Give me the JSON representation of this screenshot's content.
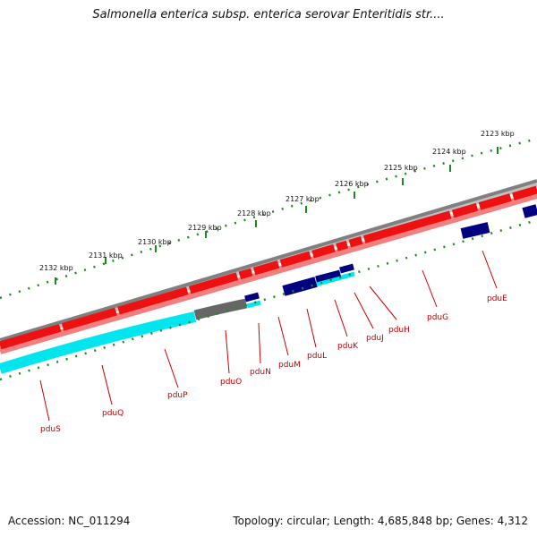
{
  "title": "Salmonella enterica subsp. enterica serovar Enteritidis str....",
  "footer": {
    "accession": "Accession: NC_011294",
    "summary": "Topology: circular; Length: 4,685,848 bp; Genes: 4,312"
  },
  "colors": {
    "ruler": "#1e8a1e",
    "backbone": "#808080",
    "gene_forward": "#ee1111",
    "gene_forward_shadow": "#f08080",
    "gene_reverse": "#000080",
    "feature_cyan": "#00e5ee",
    "feature_gray": "#666666",
    "label": "#cc0000"
  },
  "scale": {
    "unit": "kbp",
    "ticks": [
      {
        "label": "2132 kbp"
      },
      {
        "label": "2131 kbp"
      },
      {
        "label": "2130 kbp"
      },
      {
        "label": "2129 kbp"
      },
      {
        "label": "2128 kbp"
      },
      {
        "label": "2127 kbp"
      },
      {
        "label": "2126 kbp"
      },
      {
        "label": "2125 kbp"
      },
      {
        "label": "2124 kbp"
      },
      {
        "label": "2123 kbp"
      }
    ]
  },
  "genes": [
    {
      "name": "pduS"
    },
    {
      "name": "pduQ"
    },
    {
      "name": "pduP"
    },
    {
      "name": "pduO"
    },
    {
      "name": "pduN"
    },
    {
      "name": "pduM"
    },
    {
      "name": "pduL"
    },
    {
      "name": "pduK"
    },
    {
      "name": "pduJ"
    },
    {
      "name": "pduH"
    },
    {
      "name": "pduG"
    },
    {
      "name": "pduE"
    }
  ]
}
